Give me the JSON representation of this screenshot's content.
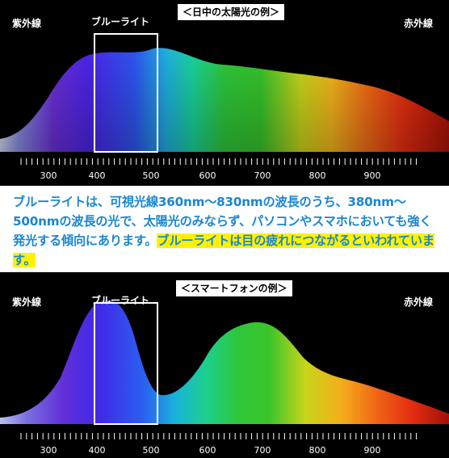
{
  "top_panel": {
    "title": "＜日中の太陽光の例＞",
    "uv_label": "紫外線",
    "blue_label": "ブルーライト",
    "ir_label": "赤外線",
    "ticks": [
      "300",
      "400",
      "500",
      "600",
      "700",
      "800",
      "900"
    ]
  },
  "caption": {
    "text_main": "ブルーライトは、可視光線360nm～830nmの波長のうち、380nm～500nmの波長の光で、太陽光のみならず、パソコンやスマホにおいても強く発光する傾向にあります。",
    "text_highlight": "ブルーライトは目の疲れにつながるといわれています。"
  },
  "bottom_panel": {
    "title": "＜スマートフォンの例＞",
    "uv_label": "紫外線",
    "blue_label": "ブルーライト",
    "ir_label": "赤外線",
    "ticks": [
      "300",
      "400",
      "500",
      "600",
      "700",
      "800",
      "900"
    ]
  },
  "colors": {
    "caption_text": "#1a86d1",
    "highlight": "#fff200"
  }
}
